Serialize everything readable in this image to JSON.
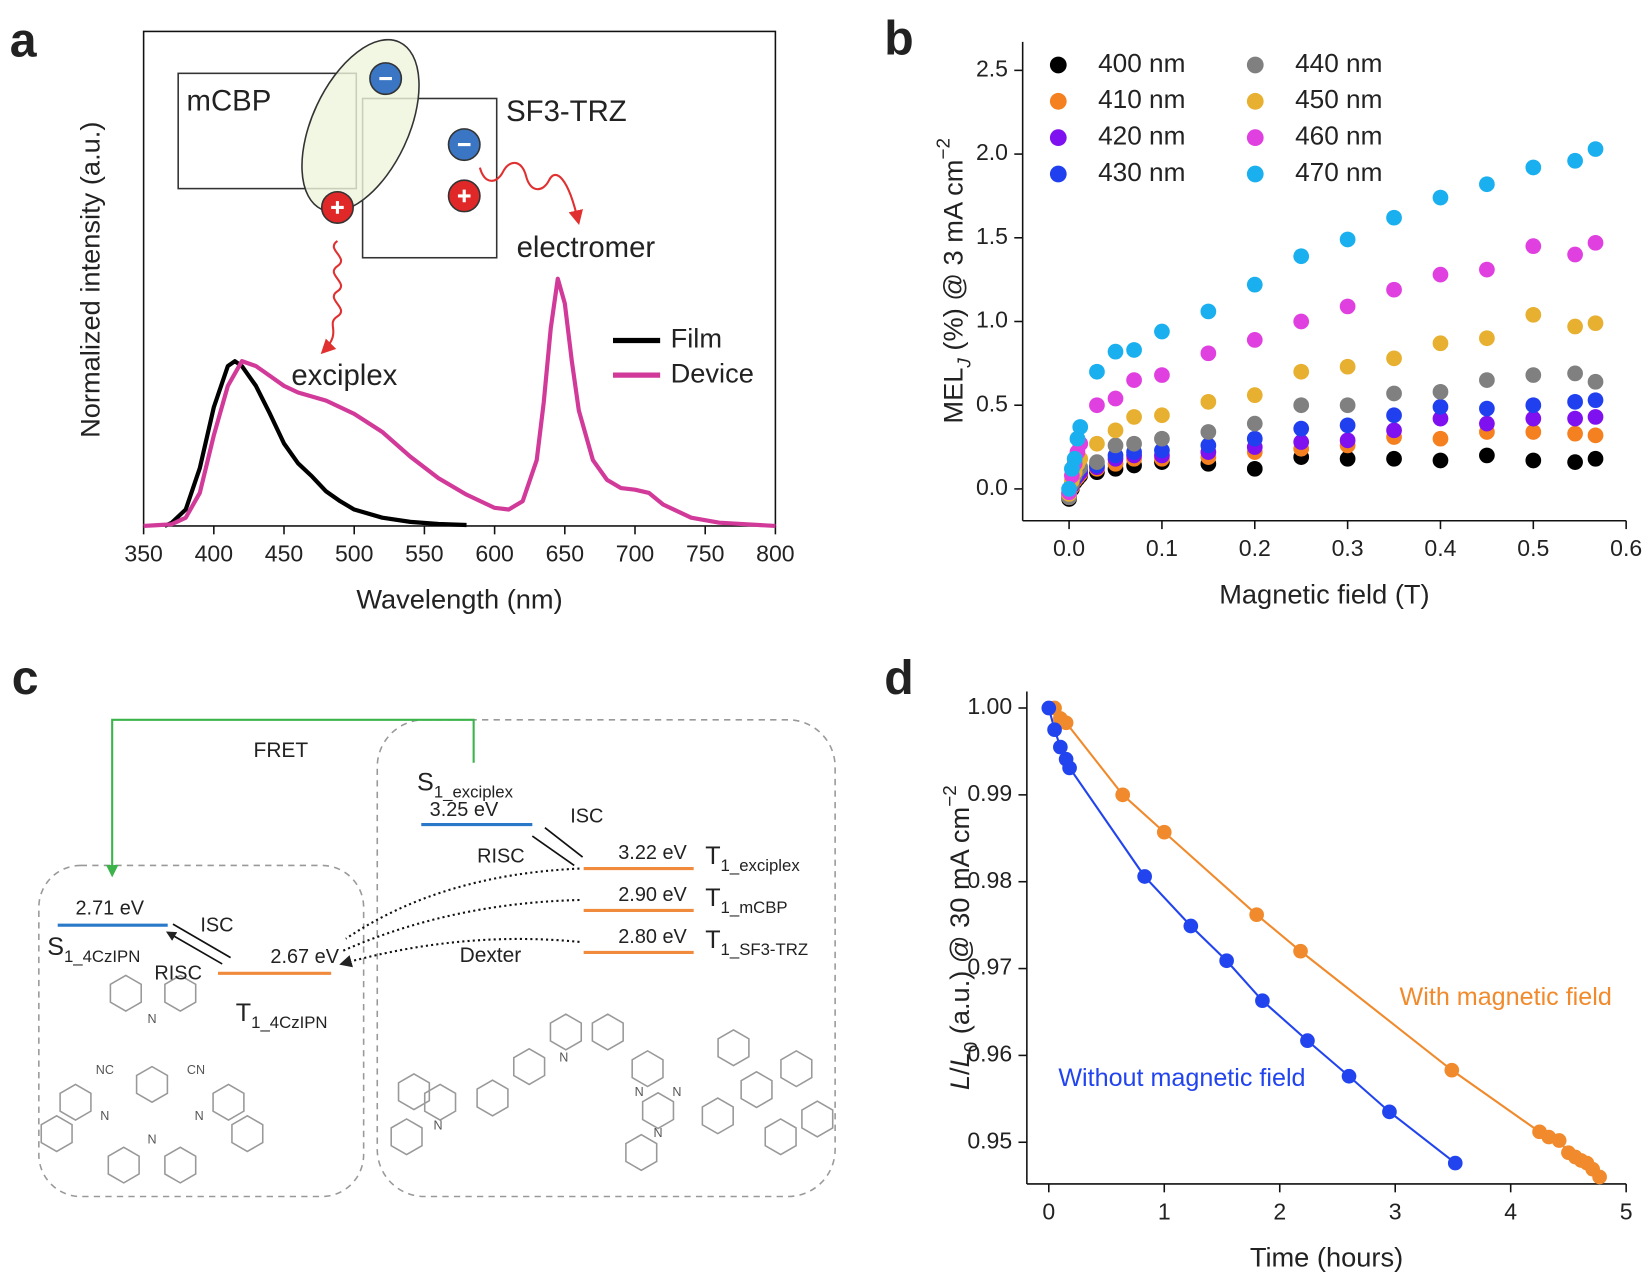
{
  "chart_data": [
    {
      "panel": "a",
      "type": "line",
      "xlabel": "Wavelength (nm)",
      "ylabel": "Normalized intensity (a.u.)",
      "xlim": [
        350,
        800
      ],
      "ylim": [
        0,
        3
      ],
      "xticks": [
        350,
        400,
        450,
        500,
        550,
        600,
        650,
        700,
        750,
        800
      ],
      "series": [
        {
          "name": "Film",
          "color": "#000000",
          "x": [
            365,
            370,
            380,
            390,
            400,
            410,
            415,
            420,
            430,
            440,
            450,
            460,
            470,
            480,
            490,
            500,
            520,
            540,
            560,
            580
          ],
          "values": [
            0,
            0.02,
            0.1,
            0.35,
            0.72,
            0.97,
            1.0,
            0.97,
            0.85,
            0.68,
            0.5,
            0.38,
            0.3,
            0.21,
            0.15,
            0.1,
            0.05,
            0.025,
            0.012,
            0.006
          ]
        },
        {
          "name": "Device",
          "color": "#d23a9a",
          "x": [
            350,
            360,
            370,
            380,
            390,
            400,
            410,
            420,
            430,
            440,
            450,
            460,
            480,
            500,
            520,
            540,
            560,
            580,
            600,
            610,
            620,
            630,
            635,
            640,
            645,
            650,
            655,
            660,
            670,
            680,
            690,
            700,
            710,
            720,
            740,
            760,
            780,
            800
          ],
          "values": [
            0,
            0.005,
            0.01,
            0.05,
            0.2,
            0.55,
            0.85,
            1.0,
            0.97,
            0.91,
            0.85,
            0.81,
            0.76,
            0.68,
            0.57,
            0.42,
            0.29,
            0.19,
            0.11,
            0.1,
            0.15,
            0.4,
            0.75,
            1.2,
            1.5,
            1.35,
            1.0,
            0.7,
            0.4,
            0.28,
            0.23,
            0.22,
            0.2,
            0.13,
            0.05,
            0.02,
            0.01,
            0
          ]
        }
      ],
      "annotations": [
        "mCBP",
        "SF3-TRZ",
        "exciplex",
        "electromer"
      ],
      "legend": "right"
    },
    {
      "panel": "b",
      "type": "scatter",
      "xlabel": "Magnetic field (T)",
      "ylabel": [
        {
          "text": "MEL"
        },
        {
          "text": "J",
          "style": "sub italic"
        },
        {
          "text": " (%) @ 3 mA cm"
        },
        {
          "text": "−2",
          "style": "sup"
        }
      ],
      "xlim": [
        -0.05,
        0.6
      ],
      "ylim": [
        -0.19,
        2.67
      ],
      "xticks": [
        {
          "value": 0,
          "label": "0.0"
        },
        0.1,
        0.2,
        0.3,
        0.4,
        0.5,
        0.6
      ],
      "yticks": [
        {
          "value": 0,
          "label": "0.0"
        },
        0.5,
        {
          "value": 1,
          "label": "1.0"
        },
        1.5,
        {
          "value": 2,
          "label": "2.0"
        },
        2.5
      ],
      "x": [
        0,
        0.003,
        0.006,
        0.009,
        0.012,
        0.03,
        0.05,
        0.07,
        0.1,
        0.15,
        0.2,
        0.25,
        0.3,
        0.35,
        0.4,
        0.45,
        0.5,
        0.545,
        0.567
      ],
      "series": [
        {
          "name": "400 nm",
          "color": "#000000",
          "values": [
            -0.06,
            0,
            0.04,
            0.06,
            0.08,
            0.1,
            0.12,
            0.14,
            0.16,
            0.15,
            0.12,
            0.19,
            0.18,
            0.18,
            0.17,
            0.2,
            0.17,
            0.16,
            0.18
          ]
        },
        {
          "name": "410 nm",
          "color": "#f4801f",
          "values": [
            -0.05,
            0.01,
            0.05,
            0.07,
            0.09,
            0.12,
            0.15,
            0.18,
            0.18,
            0.19,
            0.22,
            0.24,
            0.26,
            0.31,
            0.3,
            0.34,
            0.34,
            0.33,
            0.32
          ]
        },
        {
          "name": "420 nm",
          "color": "#7f10f0",
          "values": [
            -0.04,
            0.02,
            0.06,
            0.08,
            0.1,
            0.13,
            0.18,
            0.2,
            0.2,
            0.22,
            0.25,
            0.28,
            0.29,
            0.35,
            0.42,
            0.39,
            0.42,
            0.42,
            0.43
          ]
        },
        {
          "name": "430 nm",
          "color": "#2040f0",
          "values": [
            -0.03,
            0.03,
            0.07,
            0.1,
            0.12,
            0.14,
            0.2,
            0.22,
            0.23,
            0.26,
            0.3,
            0.36,
            0.38,
            0.44,
            0.49,
            0.48,
            0.5,
            0.52,
            0.53
          ]
        },
        {
          "name": "440 nm",
          "color": "#808080",
          "values": [
            -0.05,
            0.03,
            0.08,
            0.11,
            0.13,
            0.16,
            0.26,
            0.27,
            0.3,
            0.34,
            0.39,
            0.5,
            0.5,
            0.57,
            0.58,
            0.65,
            0.68,
            0.69,
            0.64
          ]
        },
        {
          "name": "450 nm",
          "color": "#e8b030",
          "values": [
            -0.03,
            0.05,
            0.1,
            0.15,
            0.18,
            0.27,
            0.35,
            0.43,
            0.44,
            0.52,
            0.56,
            0.7,
            0.73,
            0.78,
            0.87,
            0.9,
            1.04,
            0.97,
            0.99
          ]
        },
        {
          "name": "460 nm",
          "color": "#e040e0",
          "values": [
            -0.02,
            0.08,
            0.15,
            0.22,
            0.27,
            0.5,
            0.54,
            0.65,
            0.68,
            0.81,
            0.89,
            1.0,
            1.09,
            1.19,
            1.28,
            1.31,
            1.45,
            1.4,
            1.47
          ]
        },
        {
          "name": "470 nm",
          "color": "#1ab0f0",
          "values": [
            0,
            0.12,
            0.18,
            0.3,
            0.37,
            0.7,
            0.82,
            0.83,
            0.94,
            1.06,
            1.22,
            1.39,
            1.49,
            1.62,
            1.74,
            1.82,
            1.92,
            1.96,
            2.03
          ]
        }
      ],
      "legend": "upper left"
    },
    {
      "panel": "d",
      "type": "scatter",
      "xlabel": "Time (hours)",
      "ylabel": [
        {
          "text": "L",
          "style": "italic"
        },
        {
          "text": "/"
        },
        {
          "text": "L",
          "style": "italic"
        },
        {
          "text": "0",
          "style": "sub"
        },
        {
          "text": " (a.u.) @ 30 mA cm"
        },
        {
          "text": "−2",
          "style": "sup"
        }
      ],
      "xlim": [
        -0.19,
        5
      ],
      "ylim": [
        0.9452,
        1.0019
      ],
      "xticks": [
        0,
        1,
        2,
        3,
        4,
        5
      ],
      "yticks": [
        0.95,
        0.96,
        0.97,
        0.98,
        0.99,
        {
          "value": 1,
          "label": "1.00"
        }
      ],
      "series": [
        {
          "name": "With magnetic field",
          "color": "#f08a2c",
          "x": [
            0.05,
            0.1,
            0.15,
            0.64,
            1.0,
            1.8,
            2.18,
            3.49,
            4.25,
            4.33,
            4.42,
            4.5,
            4.56,
            4.61,
            4.66,
            4.71,
            4.77
          ],
          "values": [
            1.0,
            0.9988,
            0.9983,
            0.99,
            0.9857,
            0.9762,
            0.972,
            0.9583,
            0.9512,
            0.9506,
            0.9502,
            0.9488,
            0.9483,
            0.9479,
            0.9476,
            0.9469,
            0.946
          ]
        },
        {
          "name": "Without magnetic field",
          "color": "#2244ee",
          "x": [
            0,
            0.05,
            0.1,
            0.15,
            0.18,
            0.83,
            1.23,
            1.54,
            1.85,
            2.24,
            2.6,
            2.95,
            3.52
          ],
          "values": [
            1.0,
            0.9975,
            0.9955,
            0.9941,
            0.9931,
            0.9806,
            0.9749,
            0.9709,
            0.9663,
            0.9617,
            0.9576,
            0.9535,
            0.9476
          ]
        }
      ]
    }
  ],
  "diagram": {
    "panel": "c",
    "fret": "FRET",
    "dexter": "Dexter",
    "levels": [
      {
        "energy": "3.25 eV",
        "name": [
          {
            "text": "S"
          },
          {
            "text": "1_exciplex",
            "style": "sub"
          }
        ]
      },
      {
        "energy": "3.22 eV",
        "name": [
          {
            "text": "T"
          },
          {
            "text": "1_exciplex",
            "style": "sub"
          }
        ]
      },
      {
        "energy": "2.90 eV",
        "name": [
          {
            "text": "T"
          },
          {
            "text": "1_mCBP",
            "style": "sub"
          }
        ]
      },
      {
        "energy": "2.80 eV",
        "name": [
          {
            "text": "T"
          },
          {
            "text": "1_SF3-TRZ",
            "style": "sub"
          }
        ]
      },
      {
        "energy": "2.71 eV",
        "name": [
          {
            "text": "S"
          },
          {
            "text": "1_4CzIPN",
            "style": "sub"
          }
        ]
      },
      {
        "energy": "2.67 eV",
        "name": [
          {
            "text": "T"
          },
          {
            "text": "1_4CzIPN",
            "style": "sub"
          }
        ]
      }
    ],
    "transitions": [
      "ISC",
      "RISC",
      "ISC",
      "RISC"
    ],
    "atoms": [
      "NC",
      "CN",
      "N",
      "N",
      "N",
      "N",
      "N",
      "N",
      "N",
      "N",
      "N"
    ]
  }
}
